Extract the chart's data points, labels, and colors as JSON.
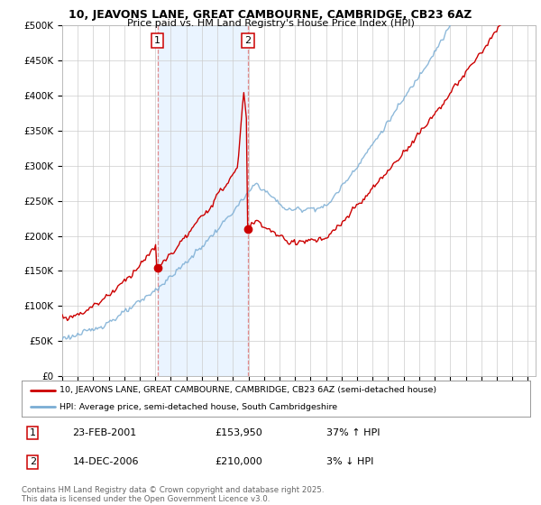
{
  "title": "10, JEAVONS LANE, GREAT CAMBOURNE, CAMBRIDGE, CB23 6AZ",
  "subtitle": "Price paid vs. HM Land Registry's House Price Index (HPI)",
  "ylim": [
    0,
    500000
  ],
  "yticks": [
    0,
    50000,
    100000,
    150000,
    200000,
    250000,
    300000,
    350000,
    400000,
    450000,
    500000
  ],
  "ytick_labels": [
    "£0",
    "£50K",
    "£100K",
    "£150K",
    "£200K",
    "£250K",
    "£300K",
    "£350K",
    "£400K",
    "£450K",
    "£500K"
  ],
  "xlim_start": 1995.0,
  "xlim_end": 2025.5,
  "xticks": [
    1995,
    1996,
    1997,
    1998,
    1999,
    2000,
    2001,
    2002,
    2003,
    2004,
    2005,
    2006,
    2007,
    2008,
    2009,
    2010,
    2011,
    2012,
    2013,
    2014,
    2015,
    2016,
    2017,
    2018,
    2019,
    2020,
    2021,
    2022,
    2023,
    2024,
    2025
  ],
  "red_color": "#cc0000",
  "blue_color": "#7aadd4",
  "vline_color": "#e08080",
  "point1_x": 2001.14,
  "point1_y": 153950,
  "point2_x": 2006.96,
  "point2_y": 210000,
  "legend_line1": "10, JEAVONS LANE, GREAT CAMBOURNE, CAMBRIDGE, CB23 6AZ (semi-detached house)",
  "legend_line2": "HPI: Average price, semi-detached house, South Cambridgeshire",
  "point1_date": "23-FEB-2001",
  "point1_price": "£153,950",
  "point1_hpi": "37% ↑ HPI",
  "point2_date": "14-DEC-2006",
  "point2_price": "£210,000",
  "point2_hpi": "3% ↓ HPI",
  "footer": "Contains HM Land Registry data © Crown copyright and database right 2025.\nThis data is licensed under the Open Government Licence v3.0.",
  "bg_color": "#ffffff",
  "grid_color": "#cccccc",
  "shade_color": "#ddeeff"
}
